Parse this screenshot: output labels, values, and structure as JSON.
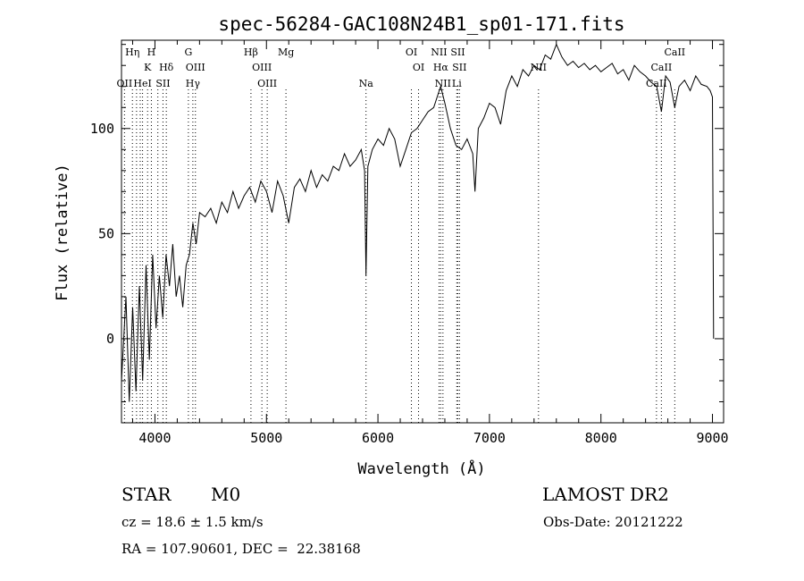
{
  "chart_data": {
    "type": "line",
    "title": "spec-56284-GAC108N24B1_sp01-171.fits",
    "xlabel": "Wavelength (Å)",
    "ylabel": "Flux (relative)",
    "xlim": [
      3700,
      9100
    ],
    "ylim": [
      -40,
      142
    ],
    "xticks": [
      4000,
      5000,
      6000,
      7000,
      8000,
      9000
    ],
    "yticks": [
      0,
      50,
      100
    ],
    "grid": false,
    "line_color": "#000000",
    "marker_color": "#000000",
    "series": [
      {
        "x": [
          3700,
          3740,
          3770,
          3800,
          3830,
          3860,
          3890,
          3920,
          3950,
          3980,
          4010,
          4040,
          4070,
          4100,
          4130,
          4160,
          4190,
          4220,
          4250,
          4280,
          4310,
          4340,
          4370,
          4400,
          4450,
          4500,
          4550,
          4600,
          4650,
          4700,
          4750,
          4800,
          4850,
          4900,
          4950,
          5000,
          5050,
          5100,
          5150,
          5200,
          5250,
          5300,
          5350,
          5400,
          5450,
          5500,
          5550,
          5600,
          5650,
          5700,
          5750,
          5800,
          5850,
          5880,
          5893,
          5910,
          5950,
          6000,
          6050,
          6100,
          6150,
          6200,
          6250,
          6300,
          6350,
          6400,
          6450,
          6500,
          6550,
          6563,
          6600,
          6650,
          6700,
          6750,
          6800,
          6850,
          6870,
          6900,
          6950,
          7000,
          7050,
          7100,
          7150,
          7200,
          7250,
          7300,
          7350,
          7400,
          7450,
          7500,
          7550,
          7600,
          7650,
          7700,
          7750,
          7800,
          7850,
          7900,
          7950,
          8000,
          8050,
          8100,
          8150,
          8200,
          8250,
          8300,
          8350,
          8400,
          8450,
          8500,
          8542,
          8580,
          8620,
          8662,
          8700,
          8750,
          8800,
          8850,
          8900,
          8950,
          8980,
          9000,
          9010
        ],
        "y": [
          -20,
          20,
          -30,
          15,
          -25,
          25,
          -20,
          35,
          -10,
          40,
          5,
          30,
          10,
          40,
          25,
          45,
          20,
          30,
          15,
          35,
          40,
          55,
          45,
          60,
          58,
          62,
          55,
          65,
          60,
          70,
          62,
          68,
          72,
          65,
          75,
          70,
          60,
          75,
          68,
          55,
          72,
          76,
          70,
          80,
          72,
          78,
          75,
          82,
          80,
          88,
          82,
          85,
          90,
          80,
          30,
          82,
          90,
          95,
          92,
          100,
          95,
          82,
          90,
          98,
          100,
          104,
          108,
          110,
          118,
          120,
          112,
          100,
          92,
          90,
          95,
          88,
          70,
          100,
          105,
          112,
          110,
          102,
          118,
          125,
          120,
          128,
          125,
          130,
          128,
          135,
          133,
          140,
          134,
          130,
          132,
          129,
          131,
          128,
          130,
          127,
          129,
          131,
          126,
          128,
          123,
          130,
          127,
          125,
          122,
          120,
          108,
          125,
          122,
          110,
          120,
          123,
          118,
          125,
          121,
          120,
          118,
          115,
          0
        ]
      }
    ],
    "markers": [
      {
        "x": 3727,
        "label": "OII",
        "row": 3
      },
      {
        "x": 3798,
        "label": "Hη",
        "row": 1
      },
      {
        "x": 3835,
        "label": "",
        "row": 0
      },
      {
        "x": 3868,
        "label": "",
        "row": 0
      },
      {
        "x": 3889,
        "label": "HeI",
        "row": 3
      },
      {
        "x": 3934,
        "label": "K",
        "row": 2
      },
      {
        "x": 3968,
        "label": "H",
        "row": 1
      },
      {
        "x": 4026,
        "label": "",
        "row": 0
      },
      {
        "x": 4072,
        "label": "SII",
        "row": 3
      },
      {
        "x": 4102,
        "label": "Hδ",
        "row": 2
      },
      {
        "x": 4300,
        "label": "G",
        "row": 1
      },
      {
        "x": 4340,
        "label": "Hγ",
        "row": 3
      },
      {
        "x": 4363,
        "label": "OIII",
        "row": 2
      },
      {
        "x": 4861,
        "label": "Hβ",
        "row": 1
      },
      {
        "x": 4959,
        "label": "OIII",
        "row": 2
      },
      {
        "x": 5007,
        "label": "OIII",
        "row": 3
      },
      {
        "x": 5175,
        "label": "Mg",
        "row": 1
      },
      {
        "x": 5893,
        "label": "Na",
        "row": 3
      },
      {
        "x": 6300,
        "label": "OI",
        "row": 1
      },
      {
        "x": 6364,
        "label": "OI",
        "row": 2
      },
      {
        "x": 6548,
        "label": "NII",
        "row": 1
      },
      {
        "x": 6563,
        "label": "Hα",
        "row": 2
      },
      {
        "x": 6583,
        "label": "NII",
        "row": 3
      },
      {
        "x": 6707,
        "label": "Li",
        "row": 3
      },
      {
        "x": 6716,
        "label": "SII",
        "row": 1
      },
      {
        "x": 6731,
        "label": "SII",
        "row": 2
      },
      {
        "x": 7440,
        "label": "NII",
        "row": 2
      },
      {
        "x": 8498,
        "label": "CaII",
        "row": 3
      },
      {
        "x": 8542,
        "label": "CaII",
        "row": 2
      },
      {
        "x": 8662,
        "label": "CaII",
        "row": 1
      }
    ]
  },
  "info": {
    "class": "STAR",
    "subclass": "M0",
    "survey": "LAMOST DR2",
    "redshift": "cz = 18.6 ± 1.5 km/s",
    "obs_date": "Obs-Date: 20121222",
    "coords": "RA = 107.90601, DEC =  22.38168"
  }
}
